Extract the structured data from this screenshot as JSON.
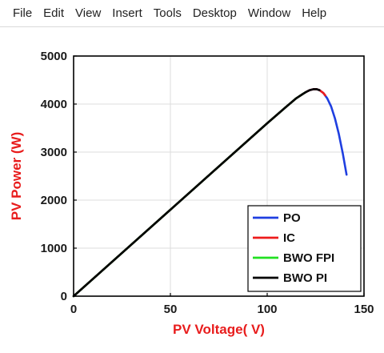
{
  "menubar": {
    "items": [
      "File",
      "Edit",
      "View",
      "Insert",
      "Tools",
      "Desktop",
      "Window",
      "Help"
    ]
  },
  "colors": {
    "axis_title": "#e81c1c",
    "PO": "#1f3fe0",
    "IC": "#ee1c1c",
    "BWO FPI": "#22e022",
    "BWO PI": "#000000"
  },
  "chart_data": {
    "type": "line",
    "title": "",
    "xlabel": "PV Voltage( V)",
    "ylabel": "PV Power (W)",
    "xlim": [
      0,
      150
    ],
    "ylim": [
      0,
      5000
    ],
    "xticks": [
      0,
      50,
      100,
      150
    ],
    "yticks": [
      0,
      1000,
      2000,
      3000,
      4000,
      5000
    ],
    "grid": true,
    "legend_position": "bottom-right",
    "series": [
      {
        "name": "PO",
        "x": [
          0,
          50,
          100,
          110,
          115,
          118,
          120,
          122,
          124,
          125.5,
          127,
          129,
          131,
          133,
          135,
          137,
          139,
          141
        ],
        "y": [
          0,
          1800,
          3600,
          3950,
          4120,
          4200,
          4250,
          4290,
          4310,
          4310,
          4290,
          4230,
          4120,
          3950,
          3700,
          3380,
          2980,
          2530
        ]
      },
      {
        "name": "IC",
        "x": [
          0,
          50,
          100,
          110,
          115,
          118,
          120,
          122,
          124,
          125.5,
          127,
          129,
          130
        ],
        "y": [
          0,
          1800,
          3600,
          3950,
          4120,
          4200,
          4250,
          4290,
          4310,
          4310,
          4290,
          4230,
          4180
        ]
      },
      {
        "name": "BWO FPI",
        "x": [
          0,
          50,
          100,
          110,
          115,
          118,
          120
        ],
        "y": [
          0,
          1800,
          3600,
          3950,
          4120,
          4200,
          4250
        ]
      },
      {
        "name": "BWO PI",
        "x": [
          0,
          50,
          100,
          110,
          115,
          118,
          120,
          122,
          124,
          125.5,
          127
        ],
        "y": [
          0,
          1800,
          3600,
          3950,
          4120,
          4200,
          4250,
          4290,
          4310,
          4310,
          4290
        ]
      }
    ]
  }
}
